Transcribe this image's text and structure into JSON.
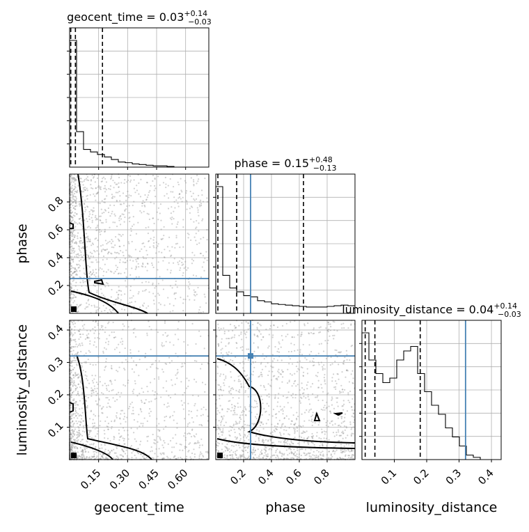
{
  "chart_data": {
    "type": "scatter",
    "subtype": "corner-plot",
    "parameters": [
      "geocent_time",
      "phase",
      "luminosity_distance"
    ],
    "ranges": {
      "geocent_time": [
        0.0,
        0.72
      ],
      "phase": [
        0.0,
        1.0
      ],
      "luminosity_distance": [
        0.0,
        0.43
      ]
    },
    "ticks": {
      "geocent_time": [
        "0.15",
        "0.30",
        "0.45",
        "0.60"
      ],
      "phase": [
        "0.2",
        "0.4",
        "0.6",
        "0.8"
      ],
      "luminosity_distance": [
        "0.1",
        "0.2",
        "0.3",
        "0.4"
      ]
    },
    "axis_labels": {
      "x": [
        "geocent_time",
        "phase",
        "luminosity_distance"
      ],
      "y": [
        "phase",
        "luminosity_distance"
      ]
    },
    "titles": {
      "geocent_time": {
        "name": "geocent_time",
        "median": "0.03",
        "plus": "+0.14",
        "minus": "−0.03"
      },
      "phase": {
        "name": "phase",
        "median": "0.15",
        "plus": "+0.48",
        "minus": "−0.13"
      },
      "luminosity_distance": {
        "name": "luminosity_distance",
        "median": "0.04",
        "plus": "+0.14",
        "minus": "−0.03"
      }
    },
    "quantiles": {
      "geocent_time": [
        0.006,
        0.03,
        0.17
      ],
      "phase": [
        0.015,
        0.15,
        0.63
      ],
      "luminosity_distance": [
        0.01,
        0.04,
        0.18
      ]
    },
    "truths": {
      "geocent_time": null,
      "phase": 0.25,
      "luminosity_distance": 0.32
    },
    "histograms": {
      "geocent_time": {
        "bins": [
          0,
          0.036,
          0.072,
          0.108,
          0.144,
          0.18,
          0.216,
          0.252,
          0.288,
          0.324,
          0.36,
          0.396,
          0.432,
          0.468,
          0.504,
          0.54,
          0.576,
          0.612,
          0.648,
          0.684,
          0.72
        ],
        "counts": [
          1.0,
          0.28,
          0.14,
          0.12,
          0.1,
          0.08,
          0.06,
          0.04,
          0.035,
          0.025,
          0.02,
          0.015,
          0.01,
          0.01,
          0.005,
          0.0,
          0.0,
          0.0,
          0.0,
          0.0
        ]
      },
      "phase": {
        "bins": [
          0,
          0.05,
          0.1,
          0.15,
          0.2,
          0.25,
          0.3,
          0.35,
          0.4,
          0.45,
          0.5,
          0.55,
          0.6,
          0.65,
          0.7,
          0.75,
          0.8,
          0.85,
          0.9,
          0.95,
          1.0
        ],
        "counts": [
          1.0,
          0.3,
          0.2,
          0.17,
          0.14,
          0.13,
          0.1,
          0.09,
          0.075,
          0.07,
          0.065,
          0.06,
          0.055,
          0.05,
          0.05,
          0.05,
          0.055,
          0.06,
          0.065,
          0.06
        ]
      },
      "luminosity_distance": {
        "bins": [
          0,
          0.0215,
          0.043,
          0.0645,
          0.086,
          0.1075,
          0.129,
          0.1505,
          0.172,
          0.1935,
          0.215,
          0.2365,
          0.258,
          0.2795,
          0.301,
          0.3225,
          0.344,
          0.3655,
          0.387,
          0.4085,
          0.43
        ],
        "counts": [
          0.28,
          0.22,
          0.19,
          0.17,
          0.18,
          0.22,
          0.24,
          0.25,
          0.19,
          0.15,
          0.12,
          0.1,
          0.07,
          0.05,
          0.03,
          0.01,
          0.005,
          0.0,
          0.0,
          0.0
        ]
      }
    },
    "grid": true,
    "legend": "none"
  }
}
